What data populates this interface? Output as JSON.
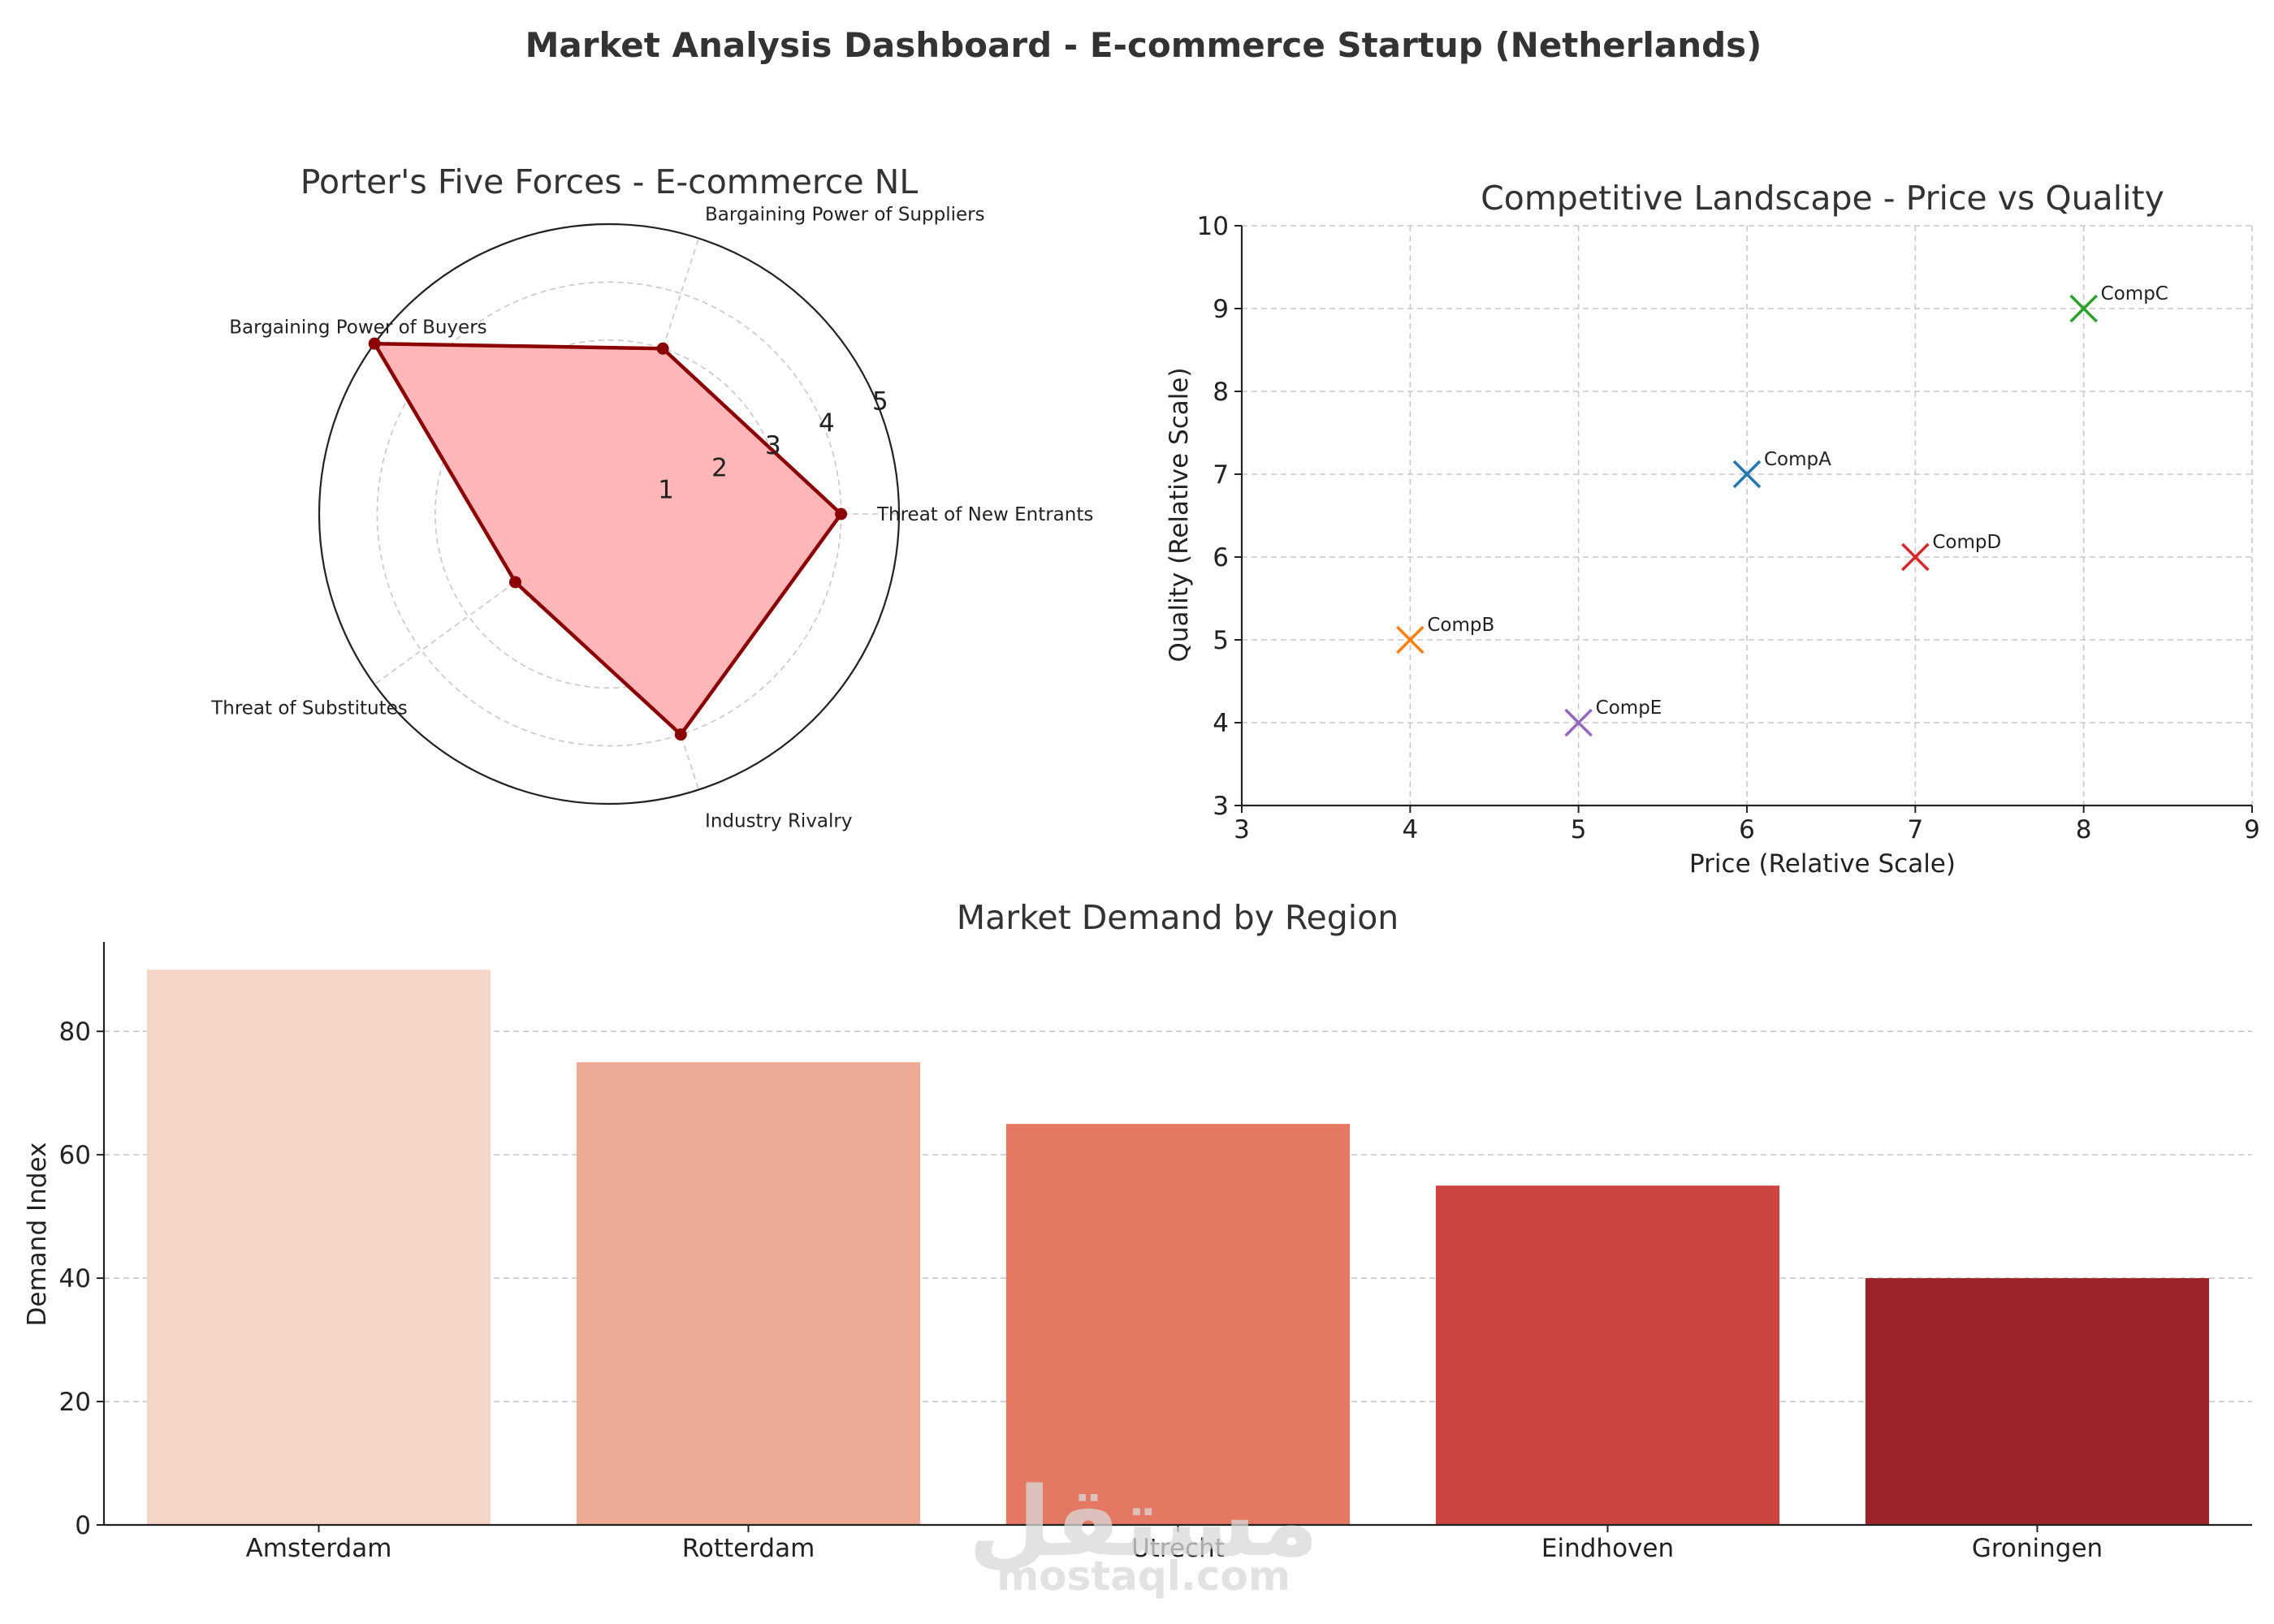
{
  "title": "Market Analysis Dashboard - E-commerce Startup (Netherlands)",
  "watermark": {
    "arabic": "مستقل",
    "latin": "mostaql.com"
  },
  "chart_data": [
    {
      "id": "radar",
      "type": "radar",
      "title": "Porter's Five Forces - E-commerce NL",
      "categories": [
        "Threat of New Entrants",
        "Bargaining Power of Suppliers",
        "Bargaining Power of Buyers",
        "Threat of Substitutes",
        "Industry Rivalry"
      ],
      "values": [
        4,
        3,
        5,
        2,
        4
      ],
      "rlim": [
        0,
        5
      ],
      "rticks": [
        "1",
        "2",
        "3",
        "4",
        "5"
      ],
      "line_color": "#8b0000",
      "fill_color": "#ffb6b9",
      "grid": true
    },
    {
      "id": "scatter",
      "type": "scatter",
      "title": "Competitive Landscape - Price vs Quality",
      "xlabel": "Price (Relative Scale)",
      "ylabel": "Quality (Relative Scale)",
      "xlim": [
        3,
        9
      ],
      "ylim": [
        3,
        10
      ],
      "xticks": [
        "3",
        "4",
        "5",
        "6",
        "7",
        "8",
        "9"
      ],
      "yticks": [
        "3",
        "4",
        "5",
        "6",
        "7",
        "8",
        "9",
        "10"
      ],
      "points": [
        {
          "label": "CompA",
          "x": 6,
          "y": 7,
          "color": "#1f77b4"
        },
        {
          "label": "CompB",
          "x": 4,
          "y": 5,
          "color": "#ff7f0e"
        },
        {
          "label": "CompC",
          "x": 8,
          "y": 9,
          "color": "#2ca02c"
        },
        {
          "label": "CompD",
          "x": 7,
          "y": 6,
          "color": "#d62728"
        },
        {
          "label": "CompE",
          "x": 5,
          "y": 4,
          "color": "#9467bd"
        }
      ],
      "grid": true
    },
    {
      "id": "bar",
      "type": "bar",
      "title": "Market Demand by Region",
      "xlabel": "",
      "ylabel": "Demand Index",
      "categories": [
        "Amsterdam",
        "Rotterdam",
        "Utrecht",
        "Eindhoven",
        "Groningen"
      ],
      "values": [
        90,
        75,
        65,
        55,
        40
      ],
      "colors": [
        "#f6d5c9",
        "#eca994",
        "#e47862",
        "#cc4540",
        "#9c242b"
      ],
      "ylim": [
        0,
        94.5
      ],
      "yticks": [
        "0",
        "20",
        "40",
        "60",
        "80"
      ],
      "grid": true
    }
  ]
}
